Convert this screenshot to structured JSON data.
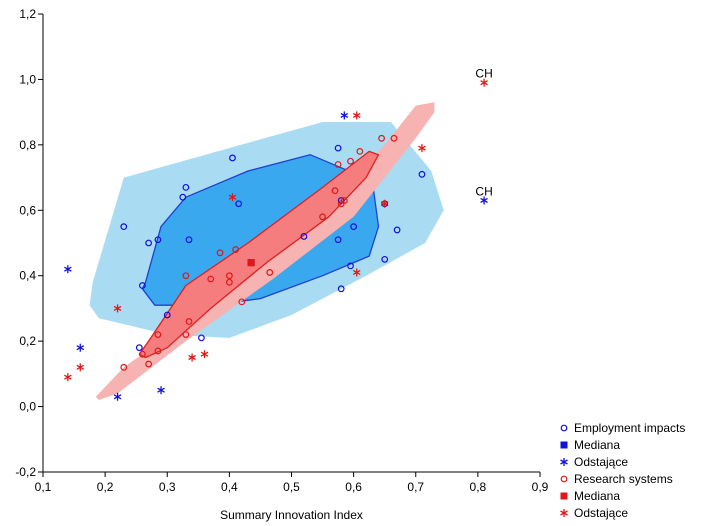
{
  "chart_data": {
    "type": "scatter",
    "xlabel": "Summary Innovation Index",
    "ylabel": "",
    "xlim": [
      0.1,
      0.9
    ],
    "ylim": [
      -0.2,
      1.2
    ],
    "x_ticks": [
      0.1,
      0.2,
      0.3,
      0.4,
      0.5,
      0.6,
      0.7,
      0.8,
      0.9
    ],
    "x_tick_labels": [
      "0,1",
      "0,2",
      "0,3",
      "0,4",
      "0,5",
      "0,6",
      "0,7",
      "0,8",
      "0,9"
    ],
    "y_ticks": [
      -0.2,
      0.0,
      0.2,
      0.4,
      0.6,
      0.8,
      1.0,
      1.2
    ],
    "y_tick_labels": [
      "-0,2",
      "0,0",
      "0,2",
      "0,4",
      "0,6",
      "0,8",
      "1,0",
      "1,2"
    ],
    "grid": false,
    "legend_position": "bottom-right",
    "colors": {
      "employment": "#1010e0",
      "research": "#e01818",
      "outer_blue": "#a9dcf3",
      "inner_blue": "#39a8ef",
      "inner_blue_edge": "#2040d0",
      "outer_red": "#f7b2b2",
      "inner_red": "#f57d7d",
      "inner_red_edge": "#e02020"
    },
    "series": [
      {
        "name": "Employment impacts",
        "marker": "circle",
        "color": "#1010e0",
        "points": [
          [
            0.23,
            0.55
          ],
          [
            0.27,
            0.5
          ],
          [
            0.285,
            0.51
          ],
          [
            0.33,
            0.67
          ],
          [
            0.325,
            0.64
          ],
          [
            0.335,
            0.51
          ],
          [
            0.405,
            0.76
          ],
          [
            0.415,
            0.62
          ],
          [
            0.26,
            0.37
          ],
          [
            0.575,
            0.79
          ],
          [
            0.58,
            0.63
          ],
          [
            0.575,
            0.51
          ],
          [
            0.58,
            0.36
          ],
          [
            0.595,
            0.43
          ],
          [
            0.6,
            0.55
          ],
          [
            0.65,
            0.62
          ],
          [
            0.65,
            0.45
          ],
          [
            0.67,
            0.54
          ],
          [
            0.71,
            0.71
          ],
          [
            0.255,
            0.18
          ],
          [
            0.3,
            0.28
          ],
          [
            0.355,
            0.21
          ],
          [
            0.52,
            0.52
          ]
        ]
      },
      {
        "name": "Mediana",
        "marker": "square",
        "color": "#1010e0",
        "points": [
          [
            0.435,
            0.44
          ]
        ]
      },
      {
        "name": "Odstające",
        "marker": "asterisk",
        "color": "#1010e0",
        "points": [
          [
            0.14,
            0.42
          ],
          [
            0.16,
            0.18
          ],
          [
            0.22,
            0.03
          ],
          [
            0.29,
            0.05
          ],
          [
            0.585,
            0.89
          ],
          [
            0.81,
            0.63
          ]
        ]
      },
      {
        "name": "Research systems",
        "marker": "circle",
        "color": "#e01818",
        "points": [
          [
            0.23,
            0.12
          ],
          [
            0.26,
            0.16
          ],
          [
            0.27,
            0.13
          ],
          [
            0.285,
            0.22
          ],
          [
            0.285,
            0.17
          ],
          [
            0.33,
            0.4
          ],
          [
            0.33,
            0.22
          ],
          [
            0.335,
            0.26
          ],
          [
            0.37,
            0.39
          ],
          [
            0.385,
            0.47
          ],
          [
            0.4,
            0.4
          ],
          [
            0.4,
            0.38
          ],
          [
            0.41,
            0.48
          ],
          [
            0.42,
            0.32
          ],
          [
            0.465,
            0.41
          ],
          [
            0.55,
            0.58
          ],
          [
            0.57,
            0.66
          ],
          [
            0.575,
            0.74
          ],
          [
            0.58,
            0.62
          ],
          [
            0.585,
            0.63
          ],
          [
            0.595,
            0.75
          ],
          [
            0.61,
            0.78
          ],
          [
            0.645,
            0.82
          ],
          [
            0.665,
            0.82
          ]
        ]
      },
      {
        "name": "Mediana",
        "marker": "square",
        "color": "#e01818",
        "points": [
          [
            0.435,
            0.44
          ]
        ]
      },
      {
        "name": "Odstające",
        "marker": "asterisk",
        "color": "#e01818",
        "points": [
          [
            0.14,
            0.09
          ],
          [
            0.16,
            0.12
          ],
          [
            0.22,
            0.3
          ],
          [
            0.34,
            0.15
          ],
          [
            0.36,
            0.16
          ],
          [
            0.405,
            0.64
          ],
          [
            0.605,
            0.89
          ],
          [
            0.605,
            0.41
          ],
          [
            0.65,
            0.62
          ],
          [
            0.71,
            0.79
          ],
          [
            0.81,
            0.99
          ]
        ]
      }
    ],
    "regions": [
      {
        "series": "Employment impacts",
        "level": "outer",
        "points": [
          [
            0.18,
            0.38
          ],
          [
            0.23,
            0.7
          ],
          [
            0.55,
            0.87
          ],
          [
            0.66,
            0.87
          ],
          [
            0.725,
            0.72
          ],
          [
            0.745,
            0.6
          ],
          [
            0.715,
            0.5
          ],
          [
            0.62,
            0.4
          ],
          [
            0.5,
            0.28
          ],
          [
            0.4,
            0.21
          ],
          [
            0.3,
            0.22
          ],
          [
            0.19,
            0.27
          ],
          [
            0.175,
            0.31
          ]
        ]
      },
      {
        "series": "Employment impacts",
        "level": "inner",
        "points": [
          [
            0.265,
            0.38
          ],
          [
            0.29,
            0.55
          ],
          [
            0.33,
            0.64
          ],
          [
            0.43,
            0.72
          ],
          [
            0.53,
            0.77
          ],
          [
            0.63,
            0.69
          ],
          [
            0.64,
            0.55
          ],
          [
            0.625,
            0.46
          ],
          [
            0.55,
            0.4
          ],
          [
            0.45,
            0.33
          ],
          [
            0.37,
            0.31
          ],
          [
            0.28,
            0.31
          ],
          [
            0.26,
            0.36
          ]
        ]
      },
      {
        "series": "Research systems",
        "level": "outer",
        "points": [
          [
            0.185,
            0.03
          ],
          [
            0.23,
            0.12
          ],
          [
            0.38,
            0.32
          ],
          [
            0.52,
            0.54
          ],
          [
            0.65,
            0.8
          ],
          [
            0.7,
            0.92
          ],
          [
            0.73,
            0.93
          ],
          [
            0.73,
            0.9
          ],
          [
            0.7,
            0.82
          ],
          [
            0.6,
            0.58
          ],
          [
            0.47,
            0.39
          ],
          [
            0.33,
            0.2
          ],
          [
            0.22,
            0.04
          ],
          [
            0.19,
            0.02
          ]
        ]
      },
      {
        "series": "Research systems",
        "level": "inner",
        "points": [
          [
            0.255,
            0.16
          ],
          [
            0.27,
            0.2
          ],
          [
            0.33,
            0.37
          ],
          [
            0.43,
            0.5
          ],
          [
            0.55,
            0.67
          ],
          [
            0.625,
            0.78
          ],
          [
            0.64,
            0.77
          ],
          [
            0.62,
            0.7
          ],
          [
            0.56,
            0.58
          ],
          [
            0.46,
            0.44
          ],
          [
            0.37,
            0.3
          ],
          [
            0.3,
            0.18
          ],
          [
            0.265,
            0.15
          ]
        ]
      }
    ],
    "annotations": [
      {
        "text": "CH",
        "x": 0.81,
        "y": 0.99
      },
      {
        "text": "CH",
        "x": 0.81,
        "y": 0.63
      }
    ]
  }
}
